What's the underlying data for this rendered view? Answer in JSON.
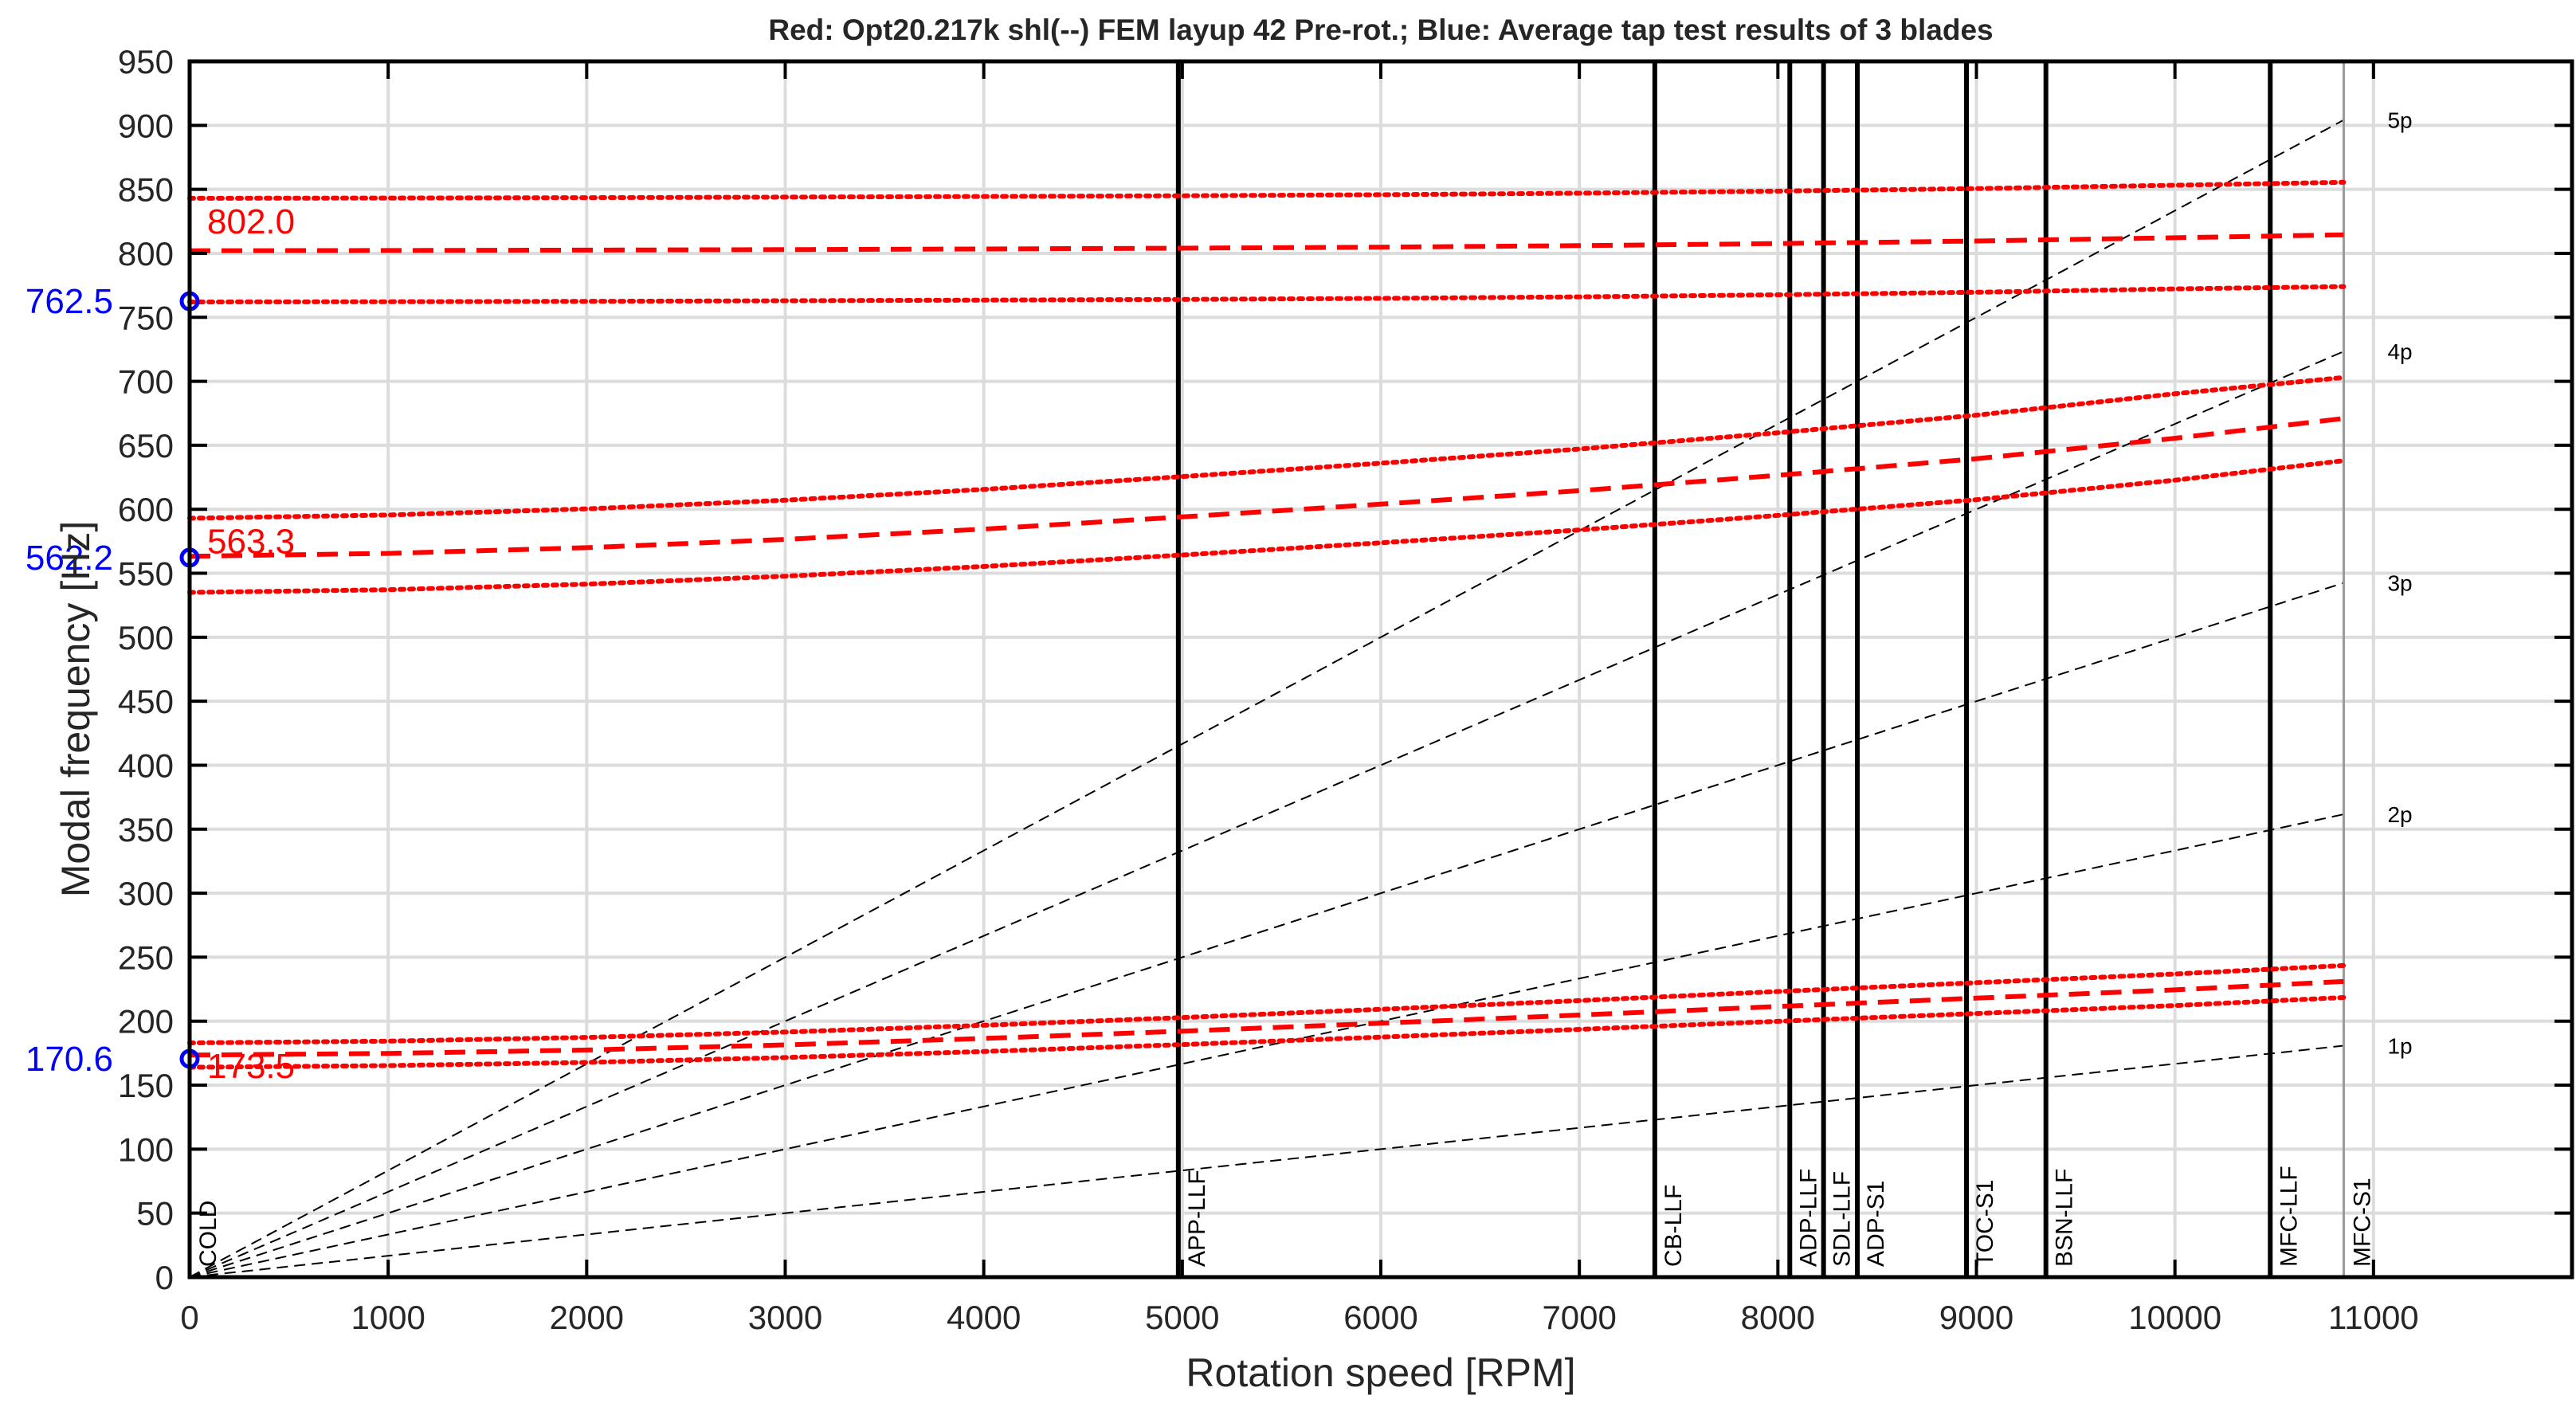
{
  "chart_data": {
    "type": "line",
    "title": "Red: Opt20.217k shl(--) FEM layup 42 Pre-rot.; Blue: Average tap test results of 3 blades",
    "xlabel": "Rotation speed [RPM]",
    "ylabel": "Modal frequency [Hz]",
    "xlim": [
      0,
      12000
    ],
    "ylim": [
      0,
      950
    ],
    "xticks": [
      0,
      1000,
      2000,
      3000,
      4000,
      5000,
      6000,
      7000,
      8000,
      9000,
      10000,
      11000
    ],
    "yticks": [
      0,
      50,
      100,
      150,
      200,
      250,
      300,
      350,
      400,
      450,
      500,
      550,
      600,
      650,
      700,
      750,
      800,
      850,
      900,
      950
    ],
    "grid": true,
    "colors": {
      "fem": "#ff0000",
      "tap": "#0000ff",
      "harmonic": "#000000",
      "operating": "#000000"
    },
    "fem_modes": [
      {
        "name": "mode-1",
        "label": "173.5",
        "x": [
          0,
          1000,
          2000,
          3000,
          4000,
          5000,
          6000,
          7000,
          8000,
          9000,
          10000,
          10850
        ],
        "mean": [
          173.5,
          174.8,
          177.5,
          181.5,
          186.5,
          192.2,
          198.4,
          204.8,
          211.5,
          218.0,
          224.5,
          231.0
        ],
        "upper": [
          183.0,
          184.4,
          187.3,
          191.5,
          196.8,
          202.8,
          209.3,
          216.1,
          223.2,
          230.1,
          236.9,
          243.5
        ],
        "lower": [
          164.0,
          165.3,
          167.8,
          171.6,
          176.3,
          181.7,
          187.6,
          193.6,
          199.9,
          206.0,
          212.2,
          218.5
        ]
      },
      {
        "name": "mode-2",
        "label": "563.3",
        "x": [
          0,
          1000,
          2000,
          3000,
          4000,
          5000,
          6000,
          7000,
          8000,
          9000,
          10000,
          10850
        ],
        "mean": [
          563.3,
          565.5,
          570.0,
          576.5,
          584.5,
          594.0,
          604.0,
          614.5,
          626.5,
          639.5,
          655.5,
          671.0
        ],
        "upper": [
          593.0,
          595.5,
          600.3,
          607.1,
          615.5,
          625.5,
          636.0,
          647.1,
          659.8,
          673.5,
          690.3,
          703.0
        ],
        "lower": [
          535.0,
          537.1,
          541.5,
          547.7,
          555.3,
          564.3,
          573.8,
          583.8,
          595.2,
          607.5,
          622.7,
          638.0
        ]
      },
      {
        "name": "mode-3",
        "label": "802.0",
        "x": [
          0,
          1000,
          2000,
          3000,
          4000,
          5000,
          6000,
          7000,
          8000,
          9000,
          10000,
          10850
        ],
        "mean": [
          802.0,
          802.2,
          802.5,
          802.9,
          803.4,
          804.0,
          804.8,
          806.0,
          807.6,
          809.6,
          812.2,
          814.5
        ],
        "upper": [
          843.0,
          843.2,
          843.5,
          843.9,
          844.4,
          845.0,
          845.8,
          847.0,
          848.6,
          850.6,
          853.2,
          855.5
        ],
        "lower": [
          762.0,
          762.2,
          762.5,
          762.9,
          763.4,
          764.0,
          764.8,
          766.0,
          767.6,
          769.6,
          772.2,
          774.0
        ]
      }
    ],
    "tap_test": {
      "x": [
        0,
        0,
        0
      ],
      "values": [
        170.6,
        562.2,
        762.5
      ],
      "labels": [
        "170.6",
        "562.2",
        "762.5"
      ]
    },
    "harmonics": [
      {
        "label": "1p",
        "order": 1
      },
      {
        "label": "2p",
        "order": 2
      },
      {
        "label": "3p",
        "order": 3
      },
      {
        "label": "4p",
        "order": 4
      },
      {
        "label": "5p",
        "order": 5
      }
    ],
    "harmonic_end_rpm": 10850,
    "operating_points": [
      {
        "label": "COLD",
        "rpm": 0
      },
      {
        "label": "APP-LLF",
        "rpm": 4980
      },
      {
        "label": "CB-LLF",
        "rpm": 7380
      },
      {
        "label": "ADP-LLF",
        "rpm": 8060
      },
      {
        "label": "SDL-LLF",
        "rpm": 8230
      },
      {
        "label": "ADP-S1",
        "rpm": 8400
      },
      {
        "label": "TOC-S1",
        "rpm": 8950
      },
      {
        "label": "BSN-LLF",
        "rpm": 9350
      },
      {
        "label": "MFC-LLF",
        "rpm": 10480
      },
      {
        "label": "MFC-S1",
        "rpm": 10850
      }
    ]
  }
}
